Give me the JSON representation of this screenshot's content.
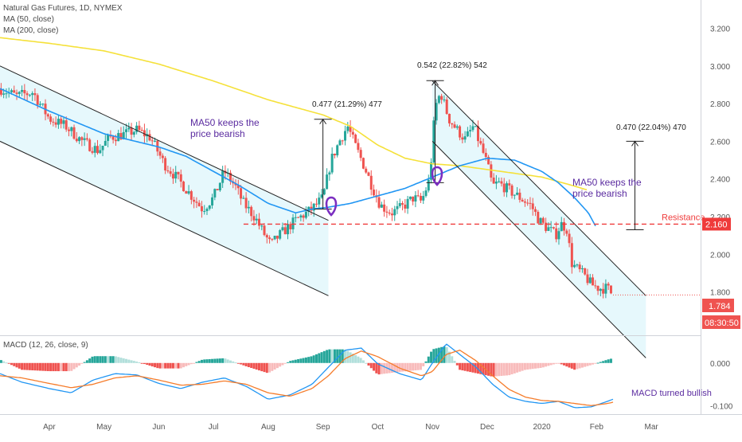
{
  "header": {
    "symbol": "Natural Gas Futures, 1D, NYMEX",
    "ma50": "MA (50, close)",
    "ma200": "MA (200, close)"
  },
  "macd_legend": "MACD (12, 26, close, 9)",
  "annotations": {
    "ma50_text_1a": "MA50 keeps the",
    "ma50_text_1b": "price bearish",
    "ma50_text_2a": "MA50 keeps the",
    "ma50_text_2b": "price bearish",
    "move1": "0.477 (21.29%) 477",
    "move2": "0.542 (22.82%) 542",
    "move3": "0.470 (22.04%) 470",
    "resistance": "Resistance",
    "macd_note": "MACD turned bullish"
  },
  "price_badges": {
    "resistance": "2.160",
    "last": "1.784",
    "countdown": "08:30:50"
  },
  "colors": {
    "bull": "#26a69a",
    "bear": "#ef5350",
    "ma50": "#2196f3",
    "ma200": "#f5e13a",
    "channel_fill": "#e6f8fc",
    "resistance": "#ef3b3b",
    "annotation": "#5b2ca0",
    "macd": "#2196f3",
    "signal": "#f57c2b",
    "hist_bull_strong": "#26a69a",
    "hist_bull_weak": "#b2dfdb",
    "hist_bear_strong": "#ef5350",
    "hist_bear_weak": "#f8bbbb"
  },
  "chart_data": [
    {
      "type": "candlestick",
      "title": "Natural Gas Futures, 1D, NYMEX",
      "ylim": [
        1.57,
        3.35
      ],
      "y_ticks": [
        "3.200",
        "3.000",
        "2.800",
        "2.600",
        "2.400",
        "2.200",
        "2.000",
        "1.800"
      ],
      "x_ticks": [
        "Apr",
        "May",
        "Jun",
        "Jul",
        "Aug",
        "Sep",
        "Oct",
        "Nov",
        "Dec",
        "2020",
        "Feb",
        "Mar"
      ],
      "x_range_months": [
        -0.9,
        11.9
      ],
      "series": [
        {
          "name": "Price",
          "anchors": [
            [
              -0.9,
              2.88
            ],
            [
              -0.6,
              2.84
            ],
            [
              -0.3,
              2.86
            ],
            [
              0,
              2.72
            ],
            [
              0.3,
              2.68
            ],
            [
              0.6,
              2.6
            ],
            [
              0.9,
              2.55
            ],
            [
              1.1,
              2.62
            ],
            [
              1.4,
              2.64
            ],
            [
              1.6,
              2.66
            ],
            [
              1.85,
              2.62
            ],
            [
              2.1,
              2.48
            ],
            [
              2.35,
              2.4
            ],
            [
              2.6,
              2.31
            ],
            [
              2.8,
              2.24
            ],
            [
              3.0,
              2.3
            ],
            [
              3.2,
              2.44
            ],
            [
              3.4,
              2.36
            ],
            [
              3.55,
              2.27
            ],
            [
              3.75,
              2.2
            ],
            [
              3.9,
              2.12
            ],
            [
              4.05,
              2.05
            ],
            [
              4.2,
              2.1
            ],
            [
              4.5,
              2.18
            ],
            [
              4.8,
              2.24
            ],
            [
              5.0,
              2.3
            ],
            [
              5.15,
              2.5
            ],
            [
              5.3,
              2.6
            ],
            [
              5.45,
              2.68
            ],
            [
              5.6,
              2.57
            ],
            [
              5.75,
              2.47
            ],
            [
              5.9,
              2.36
            ],
            [
              6.05,
              2.26
            ],
            [
              6.25,
              2.22
            ],
            [
              6.45,
              2.25
            ],
            [
              6.65,
              2.3
            ],
            [
              6.8,
              2.28
            ],
            [
              6.95,
              2.4
            ],
            [
              7.05,
              2.78
            ],
            [
              7.15,
              2.86
            ],
            [
              7.3,
              2.72
            ],
            [
              7.45,
              2.66
            ],
            [
              7.6,
              2.61
            ],
            [
              7.75,
              2.68
            ],
            [
              7.85,
              2.6
            ],
            [
              8.0,
              2.48
            ],
            [
              8.1,
              2.36
            ],
            [
              8.2,
              2.38
            ],
            [
              8.4,
              2.34
            ],
            [
              8.6,
              2.3
            ],
            [
              8.8,
              2.26
            ],
            [
              8.95,
              2.18
            ],
            [
              9.05,
              2.15
            ],
            [
              9.15,
              2.13
            ],
            [
              9.25,
              2.1
            ],
            [
              9.35,
              2.16
            ],
            [
              9.45,
              2.14
            ],
            [
              9.55,
              1.95
            ],
            [
              9.65,
              1.92
            ],
            [
              9.8,
              1.88
            ],
            [
              9.9,
              1.84
            ],
            [
              10.05,
              1.82
            ],
            [
              10.2,
              1.82
            ],
            [
              10.3,
              1.78
            ]
          ]
        },
        {
          "name": "MA (50, close)",
          "anchors": [
            [
              -0.9,
              2.88
            ],
            [
              0,
              2.76
            ],
            [
              1,
              2.64
            ],
            [
              2,
              2.57
            ],
            [
              2.5,
              2.52
            ],
            [
              3,
              2.44
            ],
            [
              3.5,
              2.36
            ],
            [
              4,
              2.27
            ],
            [
              4.5,
              2.22
            ],
            [
              4.8,
              2.24
            ],
            [
              5.1,
              2.25
            ],
            [
              5.5,
              2.27
            ],
            [
              6,
              2.31
            ],
            [
              6.5,
              2.35
            ],
            [
              7,
              2.41
            ],
            [
              7.5,
              2.47
            ],
            [
              8,
              2.51
            ],
            [
              8.5,
              2.5
            ],
            [
              9,
              2.44
            ],
            [
              9.3,
              2.38
            ],
            [
              9.6,
              2.3
            ],
            [
              9.85,
              2.22
            ],
            [
              10.0,
              2.14
            ]
          ]
        },
        {
          "name": "MA (200, close)",
          "anchors": [
            [
              -0.9,
              3.15
            ],
            [
              0,
              3.12
            ],
            [
              1,
              3.08
            ],
            [
              2,
              3.01
            ],
            [
              3,
              2.92
            ],
            [
              4,
              2.82
            ],
            [
              4.5,
              2.78
            ],
            [
              5,
              2.74
            ],
            [
              5.5,
              2.68
            ],
            [
              6,
              2.58
            ],
            [
              6.5,
              2.51
            ],
            [
              7,
              2.48
            ],
            [
              7.5,
              2.47
            ],
            [
              8,
              2.45
            ],
            [
              8.5,
              2.43
            ],
            [
              9,
              2.41
            ],
            [
              9.5,
              2.37
            ],
            [
              9.85,
              2.34
            ]
          ]
        }
      ],
      "channels": [
        {
          "upper": [
            [
              -0.9,
              3.0
            ],
            [
              5.1,
              2.18
            ]
          ],
          "lower": [
            [
              -0.9,
              2.6
            ],
            [
              5.1,
              1.78
            ]
          ]
        },
        {
          "upper": [
            [
              7.0,
              2.92
            ],
            [
              10.9,
              1.78
            ]
          ],
          "lower": [
            [
              7.0,
              2.6
            ],
            [
              10.9,
              1.45
            ]
          ]
        }
      ],
      "resistance": 2.16,
      "last_price": 1.784,
      "measures": [
        {
          "x": 5.0,
          "from": 2.24,
          "to": 2.717,
          "label": "0.477 (21.29%) 477"
        },
        {
          "x": 7.05,
          "from": 2.38,
          "to": 2.922,
          "label": "0.542 (22.82%) 542"
        },
        {
          "x": 10.7,
          "from": 2.13,
          "to": 2.6,
          "label": "0.470 (22.04%) 470"
        }
      ]
    },
    {
      "type": "macd",
      "title": "MACD (12, 26, close, 9)",
      "ylim": [
        -0.12,
        0.065
      ],
      "y_ticks": [
        "0.000",
        "-0.100"
      ],
      "series": [
        {
          "name": "MACD",
          "anchors": [
            [
              -0.9,
              -0.025
            ],
            [
              -0.5,
              -0.045
            ],
            [
              0,
              -0.06
            ],
            [
              0.4,
              -0.07
            ],
            [
              0.8,
              -0.04
            ],
            [
              1.2,
              -0.025
            ],
            [
              1.6,
              -0.028
            ],
            [
              2.0,
              -0.048
            ],
            [
              2.4,
              -0.06
            ],
            [
              2.8,
              -0.045
            ],
            [
              3.2,
              -0.035
            ],
            [
              3.6,
              -0.055
            ],
            [
              4.0,
              -0.085
            ],
            [
              4.4,
              -0.075
            ],
            [
              4.8,
              -0.05
            ],
            [
              5.1,
              -0.01
            ],
            [
              5.4,
              0.03
            ],
            [
              5.7,
              0.035
            ],
            [
              6.0,
              -0.002
            ],
            [
              6.4,
              -0.025
            ],
            [
              6.8,
              -0.04
            ],
            [
              7.0,
              0.0
            ],
            [
              7.25,
              0.045
            ],
            [
              7.5,
              0.02
            ],
            [
              7.8,
              -0.01
            ],
            [
              8.1,
              -0.05
            ],
            [
              8.4,
              -0.08
            ],
            [
              8.7,
              -0.09
            ],
            [
              9.0,
              -0.095
            ],
            [
              9.3,
              -0.09
            ],
            [
              9.6,
              -0.105
            ],
            [
              9.9,
              -0.103
            ],
            [
              10.2,
              -0.09
            ],
            [
              10.3,
              -0.085
            ]
          ]
        },
        {
          "name": "Signal",
          "anchors": [
            [
              -0.9,
              -0.03
            ],
            [
              -0.5,
              -0.035
            ],
            [
              0,
              -0.048
            ],
            [
              0.4,
              -0.058
            ],
            [
              0.8,
              -0.05
            ],
            [
              1.2,
              -0.035
            ],
            [
              1.6,
              -0.03
            ],
            [
              2.0,
              -0.04
            ],
            [
              2.4,
              -0.052
            ],
            [
              2.8,
              -0.05
            ],
            [
              3.2,
              -0.042
            ],
            [
              3.6,
              -0.05
            ],
            [
              4.0,
              -0.07
            ],
            [
              4.4,
              -0.078
            ],
            [
              4.8,
              -0.06
            ],
            [
              5.1,
              -0.03
            ],
            [
              5.4,
              0.01
            ],
            [
              5.7,
              0.028
            ],
            [
              6.0,
              0.015
            ],
            [
              6.4,
              -0.012
            ],
            [
              6.8,
              -0.03
            ],
            [
              7.0,
              -0.02
            ],
            [
              7.25,
              0.02
            ],
            [
              7.5,
              0.03
            ],
            [
              7.8,
              0.005
            ],
            [
              8.1,
              -0.03
            ],
            [
              8.4,
              -0.062
            ],
            [
              8.7,
              -0.08
            ],
            [
              9.0,
              -0.088
            ],
            [
              9.3,
              -0.09
            ],
            [
              9.6,
              -0.095
            ],
            [
              9.9,
              -0.1
            ],
            [
              10.2,
              -0.095
            ],
            [
              10.3,
              -0.092
            ]
          ]
        }
      ]
    }
  ]
}
